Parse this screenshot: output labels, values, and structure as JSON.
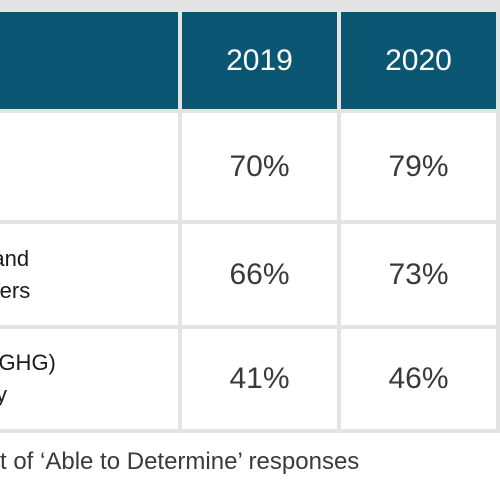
{
  "table": {
    "headers": [
      "",
      "2019",
      "2020"
    ],
    "rows": [
      {
        "label": "",
        "values": [
          "70%",
          "79%"
        ]
      },
      {
        "label": "n and\nilizers",
        "values": [
          "66%",
          "73%"
        ]
      },
      {
        "label": "s (GHG)\nsity",
        "values": [
          "41%",
          "46%"
        ]
      }
    ]
  },
  "footnote": "t of ‘Able to Determine’ responses"
}
